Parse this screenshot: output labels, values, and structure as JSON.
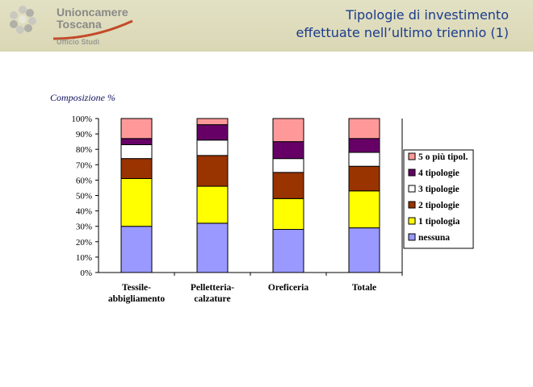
{
  "header": {
    "org_line1": "Unioncamere",
    "org_line2": "Toscana",
    "department": "Ufficio Studi",
    "title_line1": "Tipologie di investimento",
    "title_line2": "effettuate nell’ultimo triennio (1)"
  },
  "chart_data": {
    "type": "bar",
    "stacked": true,
    "subtitle": "Composizione %",
    "categories": [
      "Tessile-abbigliamento",
      "Pelletteria-calzature",
      "Oreficeria",
      "Totale"
    ],
    "category_label_lines": [
      [
        "Tessile-",
        "abbigliamento"
      ],
      [
        "Pelletteria-",
        "calzature"
      ],
      [
        "Oreficeria"
      ],
      [
        "Totale"
      ]
    ],
    "series": [
      {
        "name": "nessuna",
        "color": "#9999ff",
        "values": [
          30,
          32,
          28,
          29
        ]
      },
      {
        "name": "1 tipologia",
        "color": "#ffff00",
        "values": [
          31,
          24,
          20,
          24
        ]
      },
      {
        "name": "2 tipologie",
        "color": "#993300",
        "values": [
          13,
          20,
          17,
          16
        ]
      },
      {
        "name": "3 tipologie",
        "color": "#ffffff",
        "values": [
          9,
          10,
          9,
          9
        ]
      },
      {
        "name": "4 tipologie",
        "color": "#660066",
        "values": [
          4,
          10,
          11,
          9
        ]
      },
      {
        "name": "5 o più tipol.",
        "color": "#ff9999",
        "values": [
          13,
          4,
          15,
          13
        ]
      }
    ],
    "yticks": [
      "0%",
      "10%",
      "20%",
      "30%",
      "40%",
      "50%",
      "60%",
      "70%",
      "80%",
      "90%",
      "100%"
    ],
    "ylim": [
      0,
      100
    ],
    "grid": false,
    "legend_position": "right"
  }
}
